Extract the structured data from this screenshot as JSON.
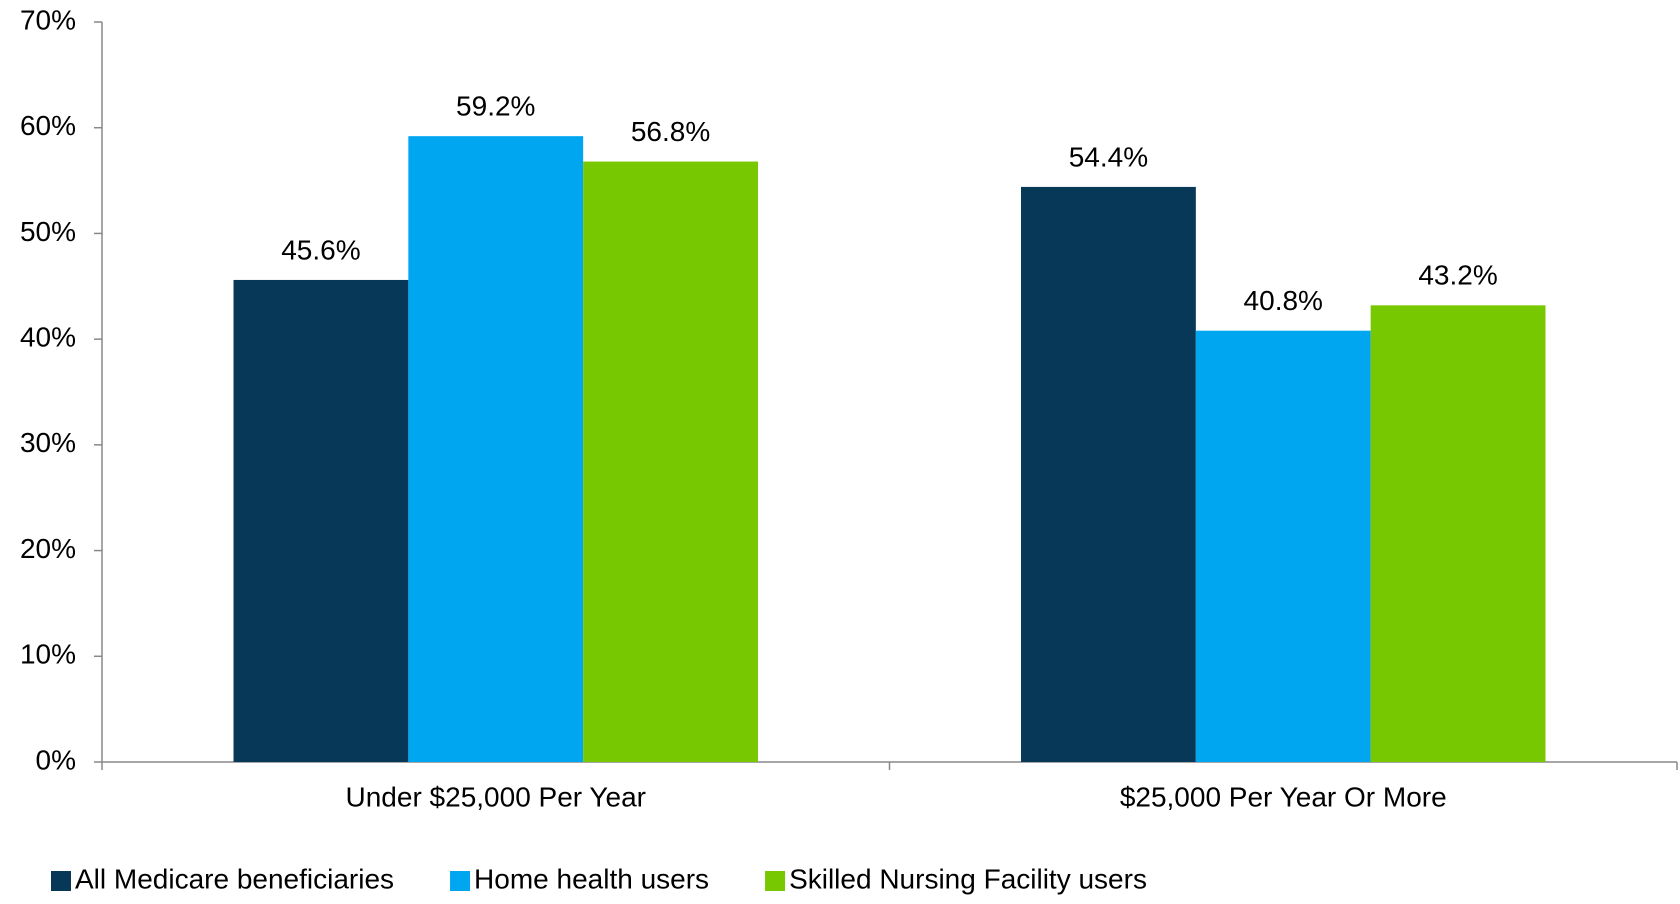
{
  "chart_data": {
    "type": "bar",
    "categories": [
      "Under $25,000 Per Year",
      "$25,000 Per Year Or More"
    ],
    "series": [
      {
        "name": "All Medicare beneficiaries",
        "color": "#083857",
        "values": [
          45.6,
          54.4
        ],
        "value_labels": [
          "45.6%",
          "54.4%"
        ]
      },
      {
        "name": "Home health users",
        "color": "#00a6f0",
        "values": [
          59.2,
          40.8
        ],
        "value_labels": [
          "59.2%",
          "40.8%"
        ]
      },
      {
        "name": "Skilled Nursing Facility users",
        "color": "#77c800",
        "values": [
          56.8,
          43.2
        ],
        "value_labels": [
          "56.8%",
          "43.2%"
        ]
      }
    ],
    "ylim": [
      0,
      70
    ],
    "yticks": [
      {
        "value": 0,
        "label": "0%"
      },
      {
        "value": 10,
        "label": "10%"
      },
      {
        "value": 20,
        "label": "20%"
      },
      {
        "value": 30,
        "label": "30%"
      },
      {
        "value": 40,
        "label": "40%"
      },
      {
        "value": 50,
        "label": "50%"
      },
      {
        "value": 60,
        "label": "60%"
      },
      {
        "value": 70,
        "label": "70%"
      }
    ],
    "grid": false,
    "legend": "bottom"
  }
}
